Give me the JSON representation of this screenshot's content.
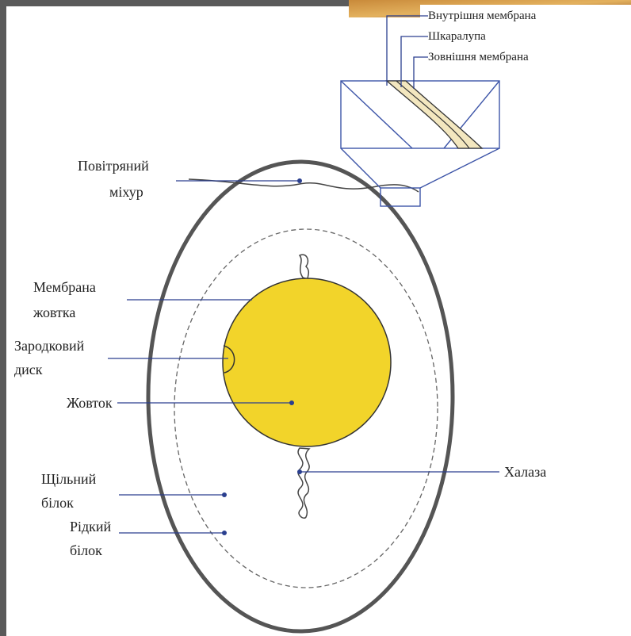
{
  "labels": {
    "inner_membrane": "Внутрішня мембрана",
    "shell": "Шкаралупа",
    "outer_membrane": "Зовнішня мембрана",
    "air_cell": [
      "Повітряний",
      "міхур"
    ],
    "yolk_membrane": [
      "Мембрана",
      "жовтка"
    ],
    "germinal_disc": [
      "Зародковий",
      "диск"
    ],
    "yolk": "Жовток",
    "dense_albumen": [
      "Щільний",
      "білок"
    ],
    "liquid_albumen": [
      "Рідкий",
      "білок"
    ],
    "chalaza": "Халаза"
  }
}
